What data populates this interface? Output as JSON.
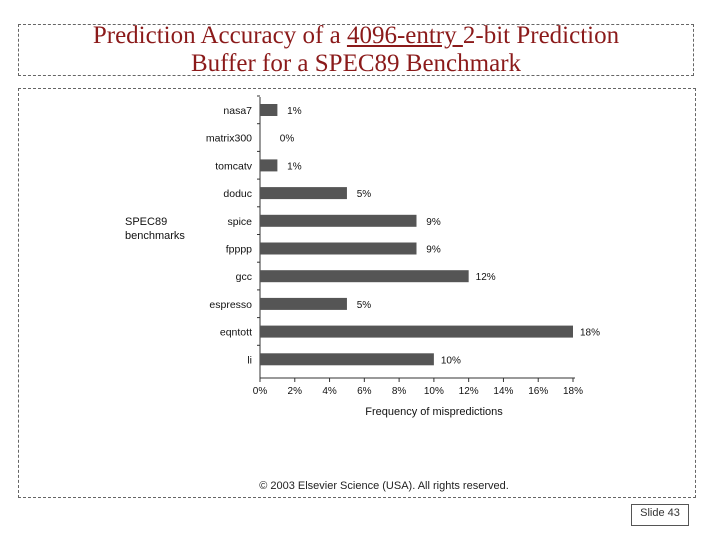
{
  "slide": {
    "title_part1": "Prediction Accuracy of a ",
    "title_underlined": "4096-entry ",
    "title_part2": "2-bit Prediction",
    "title_line2": "Buffer for a SPEC89 Benchmark",
    "copyright": "© 2003 Elsevier Science (USA). All rights reserved.",
    "slide_number": "Slide 43"
  },
  "colors": {
    "title": "#8b1a1a",
    "bar": "#555555"
  },
  "chart_data": {
    "type": "bar",
    "orientation": "horizontal",
    "categories": [
      "nasa7",
      "matrix300",
      "tomcatv",
      "doduc",
      "spice",
      "fpppp",
      "gcc",
      "espresso",
      "eqntott",
      "li"
    ],
    "values": [
      1,
      0,
      1,
      5,
      9,
      9,
      12,
      5,
      18,
      10
    ],
    "data_labels": [
      "1%",
      "0%",
      "1%",
      "5%",
      "9%",
      "9%",
      "12%",
      "5%",
      "18%",
      "10%"
    ],
    "xlabel": "Frequency of mispredictions",
    "ylabel_line1": "SPEC89",
    "ylabel_line2": "benchmarks",
    "xlim": [
      0,
      18
    ],
    "xticks": [
      "0%",
      "2%",
      "4%",
      "6%",
      "8%",
      "10%",
      "12%",
      "14%",
      "16%",
      "18%"
    ],
    "grid": false
  }
}
